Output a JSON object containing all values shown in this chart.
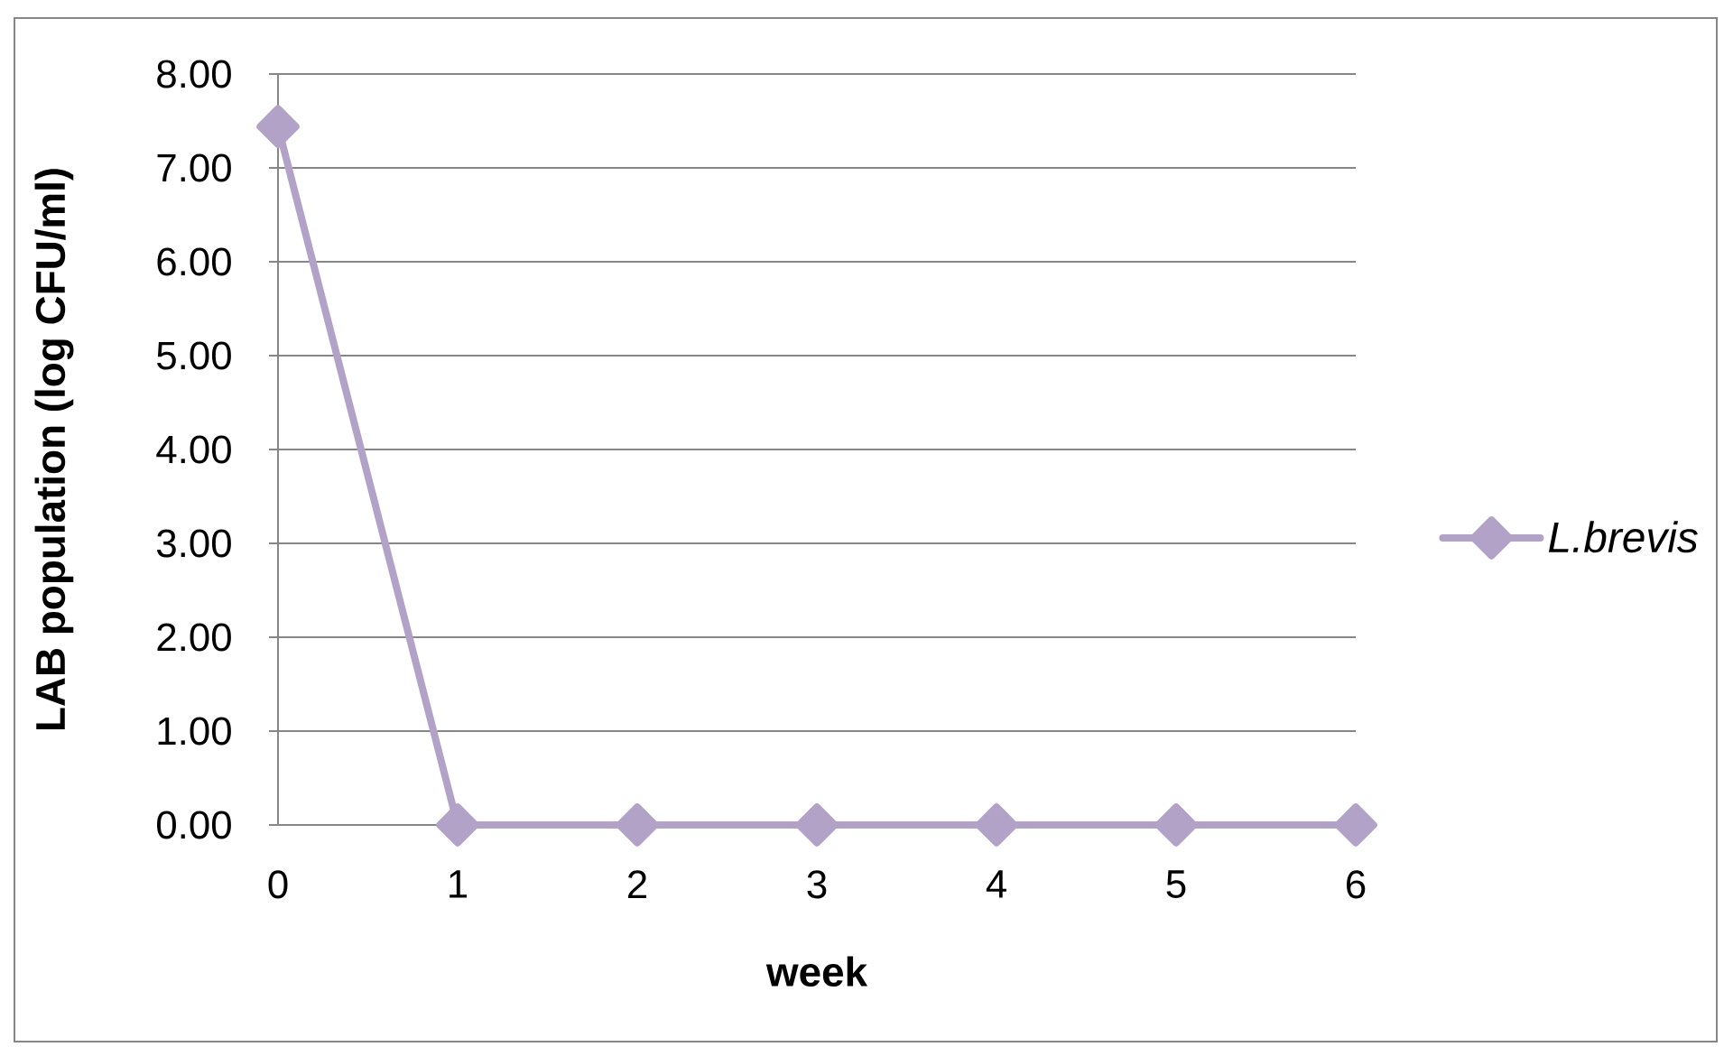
{
  "chart_data": {
    "type": "line",
    "xlabel": "week",
    "ylabel": "LAB population (log CFU/ml)",
    "categories": [
      "0",
      "1",
      "2",
      "3",
      "4",
      "5",
      "6"
    ],
    "series": [
      {
        "name": "L.brevis",
        "color": "#b3a2c7",
        "values": [
          7.44,
          0,
          0,
          0,
          0,
          0,
          0
        ]
      }
    ],
    "ylim": [
      0,
      8
    ],
    "yticks": [
      {
        "value": 0,
        "label": "0.00"
      },
      {
        "value": 1,
        "label": "1.00"
      },
      {
        "value": 2,
        "label": "2.00"
      },
      {
        "value": 3,
        "label": "3.00"
      },
      {
        "value": 4,
        "label": "4.00"
      },
      {
        "value": 5,
        "label": "5.00"
      },
      {
        "value": 6,
        "label": "6.00"
      },
      {
        "value": 7,
        "label": "7.00"
      },
      {
        "value": 8,
        "label": "8.00"
      }
    ],
    "grid": "y",
    "legend": "right",
    "marker": "diamond",
    "line_style": "solid"
  }
}
